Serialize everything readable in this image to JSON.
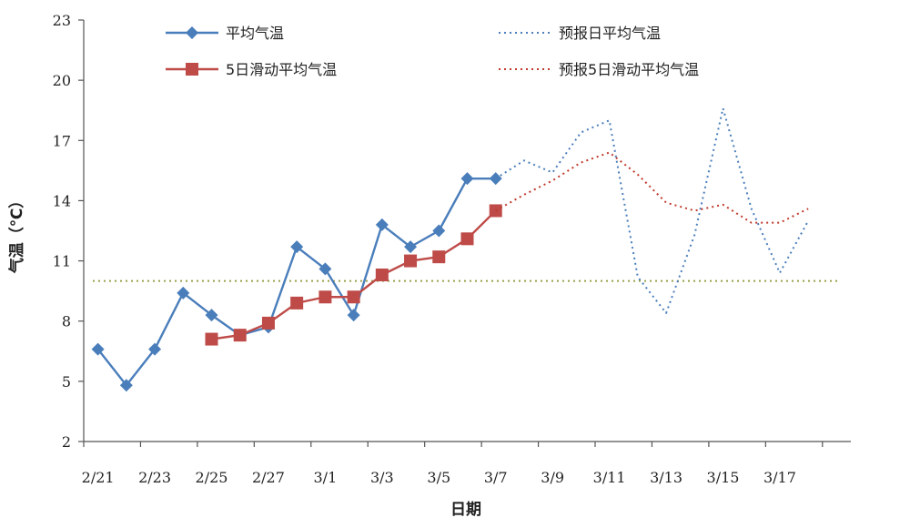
{
  "chart_data": {
    "type": "line",
    "xlabel": "日期",
    "ylabel": "气温（℃）",
    "ylim": [
      2,
      23
    ],
    "yticks": [
      2,
      5,
      8,
      11,
      14,
      17,
      20,
      23
    ],
    "x_categories": [
      "2/21",
      "2/22",
      "2/23",
      "2/24",
      "2/25",
      "2/26",
      "2/27",
      "2/28",
      "3/1",
      "3/2",
      "3/3",
      "3/4",
      "3/5",
      "3/6",
      "3/7",
      "3/8",
      "3/9",
      "3/10",
      "3/11",
      "3/12",
      "3/13",
      "3/14",
      "3/15",
      "3/16",
      "3/17",
      "3/18",
      "3/19"
    ],
    "xtick_labels": [
      "2/21",
      "2/23",
      "2/25",
      "2/27",
      "3/1",
      "3/3",
      "3/5",
      "3/7",
      "3/9",
      "3/11",
      "3/13",
      "3/15",
      "3/17"
    ],
    "reference_line": {
      "y": 10,
      "color": "#9aa04a"
    },
    "series": [
      {
        "name": "平均气温",
        "style": "solid",
        "marker": "diamond",
        "color": "#4a7ebb",
        "points": [
          [
            "2/21",
            6.6
          ],
          [
            "2/22",
            4.8
          ],
          [
            "2/23",
            6.6
          ],
          [
            "2/24",
            9.4
          ],
          [
            "2/25",
            8.3
          ],
          [
            "2/26",
            7.3
          ],
          [
            "2/27",
            7.7
          ],
          [
            "2/28",
            11.7
          ],
          [
            "3/1",
            10.6
          ],
          [
            "3/2",
            8.3
          ],
          [
            "3/3",
            12.8
          ],
          [
            "3/4",
            11.7
          ],
          [
            "3/5",
            12.5
          ],
          [
            "3/6",
            15.1
          ],
          [
            "3/7",
            15.1
          ]
        ]
      },
      {
        "name": "5日滑动平均气温",
        "style": "solid",
        "marker": "square",
        "color": "#be4b48",
        "points": [
          [
            "2/25",
            7.1
          ],
          [
            "2/26",
            7.3
          ],
          [
            "2/27",
            7.9
          ],
          [
            "2/28",
            8.9
          ],
          [
            "3/1",
            9.2
          ],
          [
            "3/2",
            9.2
          ],
          [
            "3/3",
            10.3
          ],
          [
            "3/4",
            11.0
          ],
          [
            "3/5",
            11.2
          ],
          [
            "3/6",
            12.1
          ],
          [
            "3/7",
            13.5
          ]
        ]
      },
      {
        "name": "预报日平均气温",
        "style": "dotted",
        "marker": "none",
        "color": "#4a7ebb",
        "points": [
          [
            "3/7",
            15.1
          ],
          [
            "3/8",
            16.0
          ],
          [
            "3/9",
            15.4
          ],
          [
            "3/10",
            17.4
          ],
          [
            "3/11",
            18.0
          ],
          [
            "3/12",
            10.2
          ],
          [
            "3/13",
            8.4
          ],
          [
            "3/14",
            12.3
          ],
          [
            "3/15",
            18.6
          ],
          [
            "3/16",
            13.6
          ],
          [
            "3/17",
            10.4
          ],
          [
            "3/18",
            13.0
          ]
        ]
      },
      {
        "name": "预报5日滑动平均气温",
        "style": "dotted",
        "marker": "none",
        "color": "#c0392b",
        "points": [
          [
            "3/7",
            13.5
          ],
          [
            "3/8",
            14.3
          ],
          [
            "3/9",
            15.0
          ],
          [
            "3/10",
            15.9
          ],
          [
            "3/11",
            16.4
          ],
          [
            "3/12",
            15.3
          ],
          [
            "3/13",
            13.9
          ],
          [
            "3/14",
            13.5
          ],
          [
            "3/15",
            13.8
          ],
          [
            "3/16",
            12.9
          ],
          [
            "3/17",
            12.9
          ],
          [
            "3/18",
            13.6
          ]
        ]
      }
    ],
    "legend": [
      {
        "label": "平均气温",
        "series": 0
      },
      {
        "label": "5日滑动平均气温",
        "series": 1
      },
      {
        "label": "预报日平均气温",
        "series": 2
      },
      {
        "label": "预报5日滑动平均气温",
        "series": 3
      }
    ],
    "legend_position": "top",
    "grid": false
  }
}
